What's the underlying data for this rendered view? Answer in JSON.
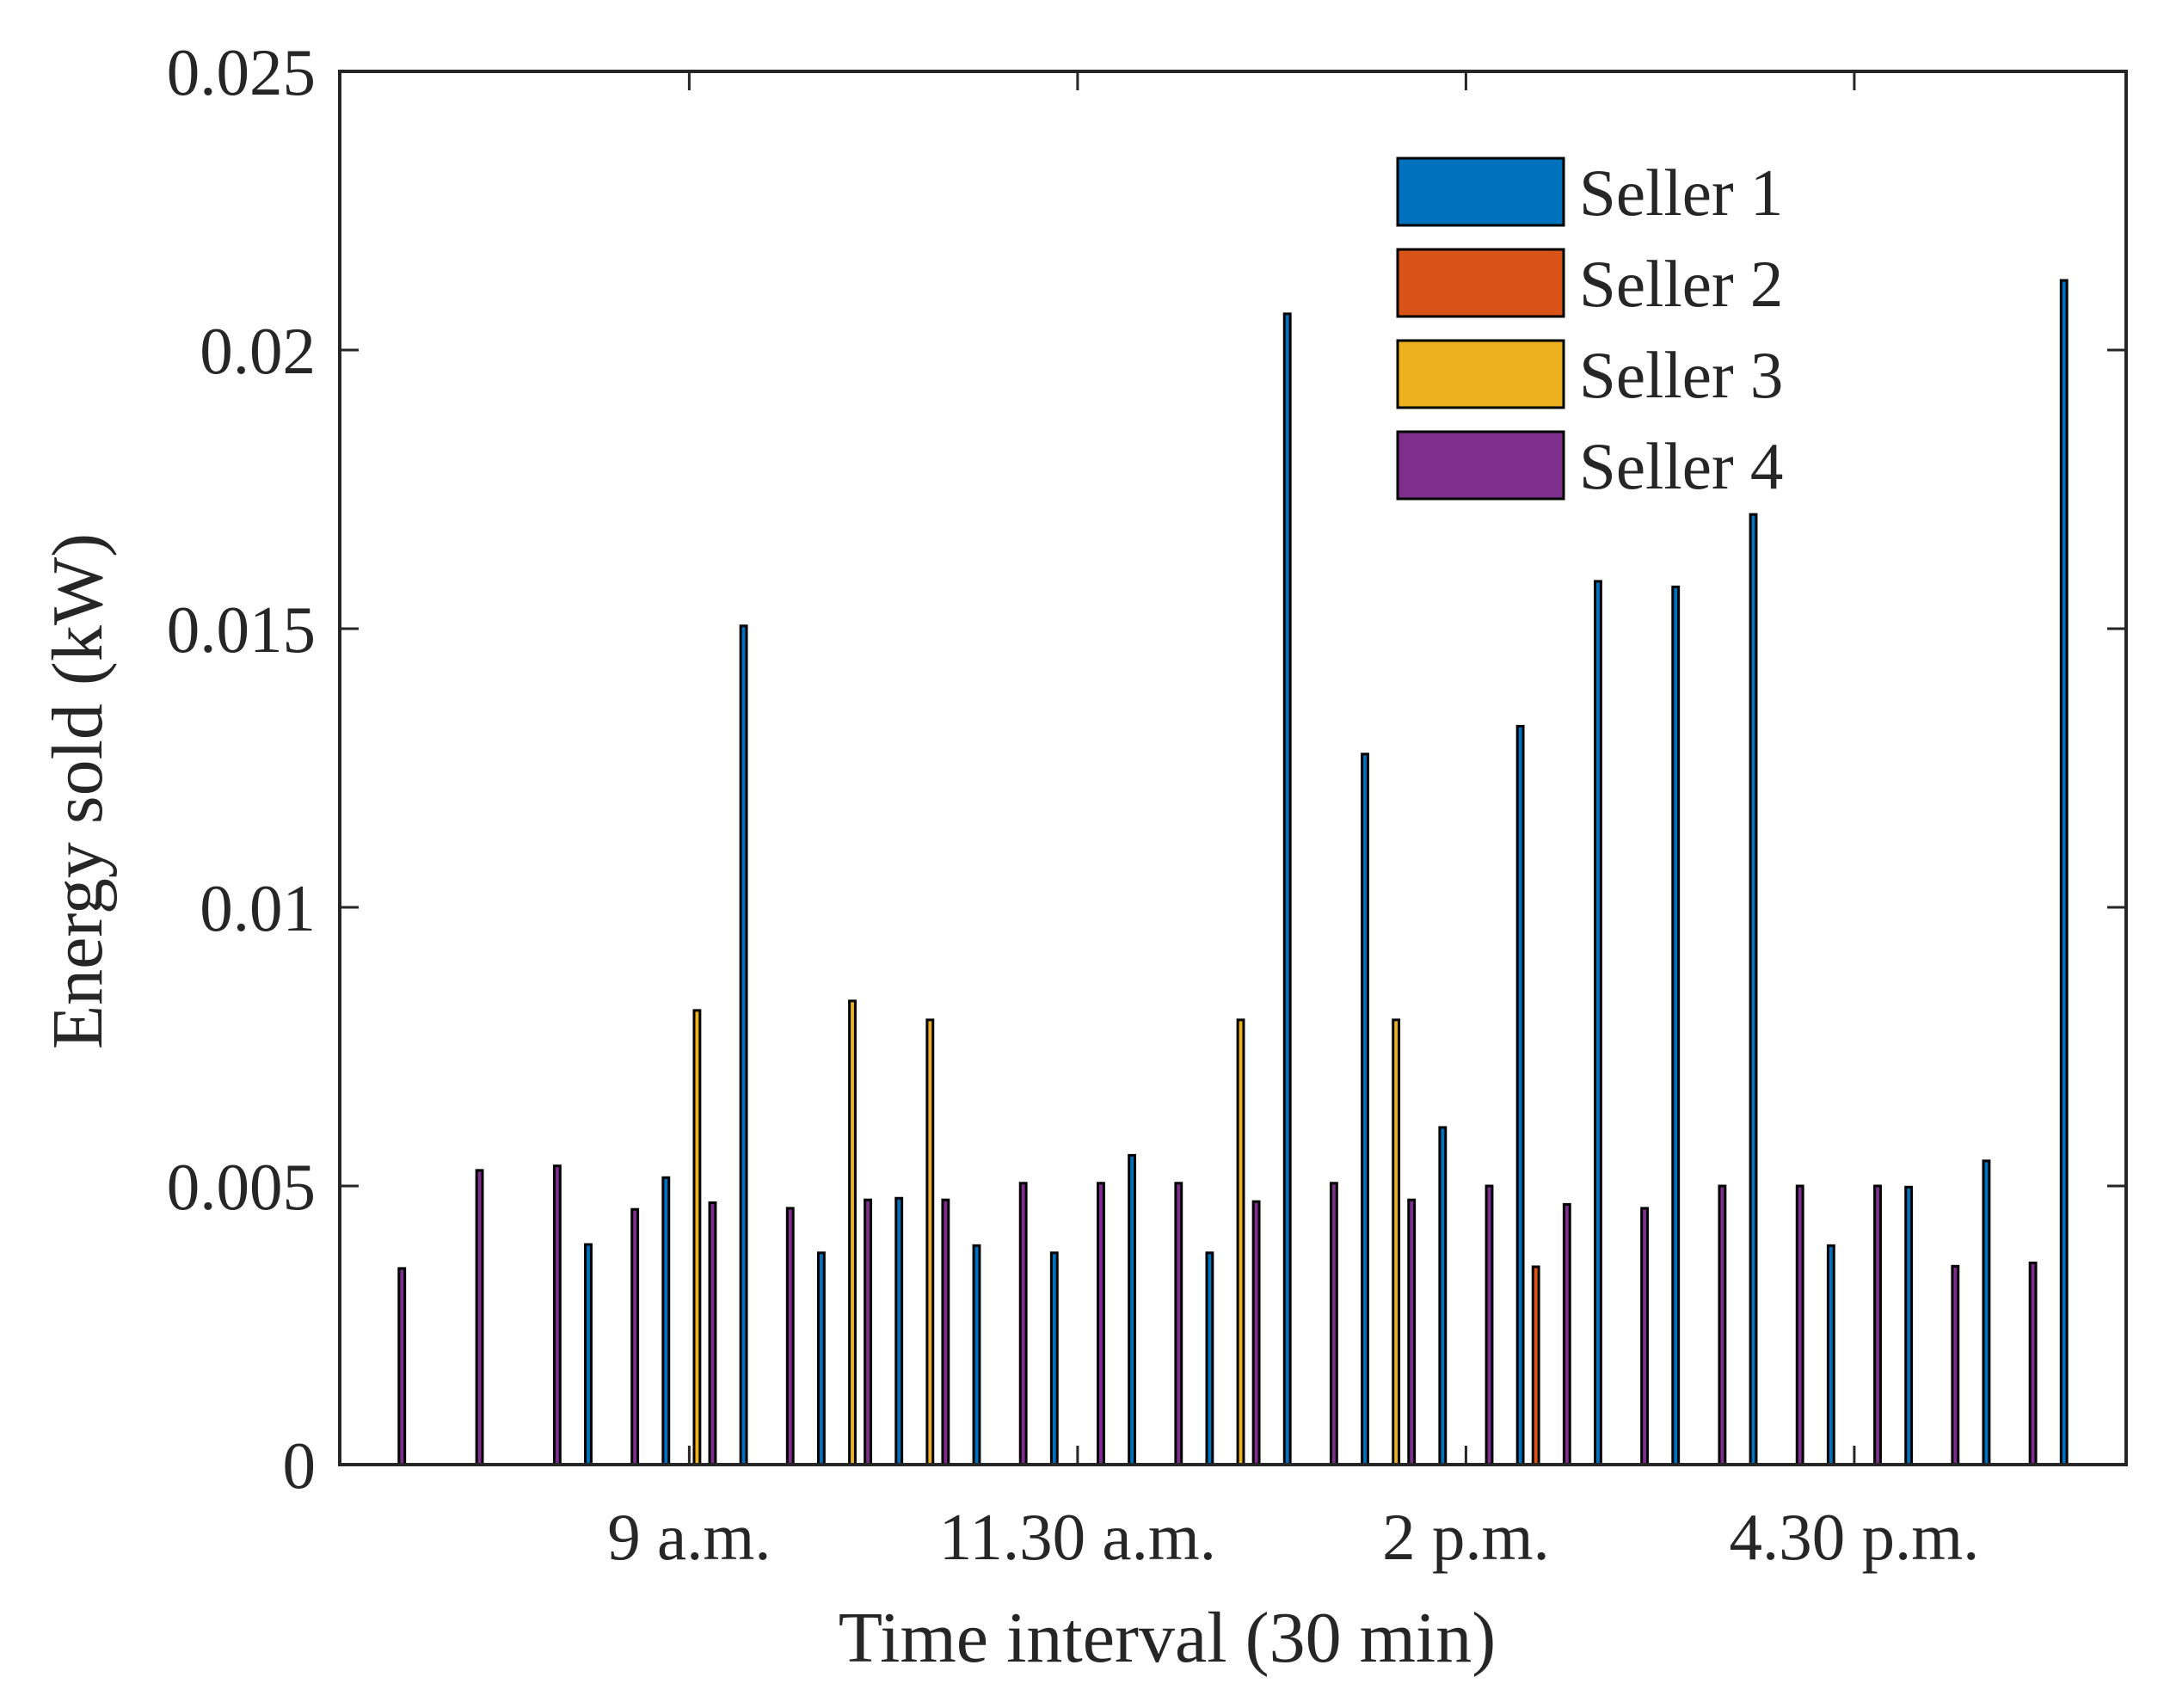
{
  "chart_data": {
    "type": "bar",
    "title": "",
    "xlabel": "Time interval (30 min)",
    "ylabel": "Energy sold (kW)",
    "ylim": [
      0,
      0.025
    ],
    "yticks": [
      0,
      0.005,
      0.01,
      0.015,
      0.02,
      0.025
    ],
    "ytick_labels": [
      "0",
      "0.005",
      "0.01",
      "0.015",
      "0.02",
      "0.025"
    ],
    "xlim": [
      0.5,
      23.5
    ],
    "xticks": [
      5,
      10,
      15,
      20
    ],
    "xtick_labels": [
      "9 a.m.",
      "11.30 a.m.",
      "2 p.m.",
      "4.30 p.m."
    ],
    "categories": [
      1,
      2,
      3,
      4,
      5,
      6,
      7,
      8,
      9,
      10,
      11,
      12,
      13,
      14,
      15,
      16,
      17,
      18,
      19,
      20,
      21,
      22,
      23
    ],
    "legend_position": "top-right",
    "series": [
      {
        "name": "Seller 1",
        "color": "#0072BD",
        "values": [
          0,
          0,
          0,
          0.00395,
          0.00515,
          0.01505,
          0.0038,
          0.00478,
          0.00393,
          0.0038,
          0.00555,
          0.0038,
          0.02065,
          0.01275,
          0.00605,
          0.01325,
          0.01585,
          0.01575,
          0.01705,
          0.00393,
          0.00498,
          0.00545,
          0.02125
        ]
      },
      {
        "name": "Seller 2",
        "color": "#D95319",
        "values": [
          0,
          0,
          0,
          0,
          0,
          0,
          0,
          0,
          0,
          0,
          0,
          0,
          0,
          0,
          0,
          0.00355,
          0,
          0,
          0,
          0,
          0,
          0,
          0
        ]
      },
      {
        "name": "Seller 3",
        "color": "#EDB120",
        "values": [
          0,
          0,
          0,
          0,
          0.00815,
          0,
          0.00832,
          0.00798,
          0,
          0,
          0,
          0.00798,
          0,
          0.00798,
          0,
          0,
          0,
          0,
          0,
          0,
          0,
          0,
          0
        ]
      },
      {
        "name": "Seller 4",
        "color": "#7E2F8E",
        "values": [
          0.00352,
          0.00528,
          0.00536,
          0.00458,
          0.0047,
          0.0046,
          0.00475,
          0.00475,
          0.00505,
          0.00505,
          0.00505,
          0.00472,
          0.00505,
          0.00475,
          0.005,
          0.00467,
          0.0046,
          0.005,
          0.005,
          0.005,
          0.00356,
          0.00362,
          0
        ]
      }
    ]
  }
}
